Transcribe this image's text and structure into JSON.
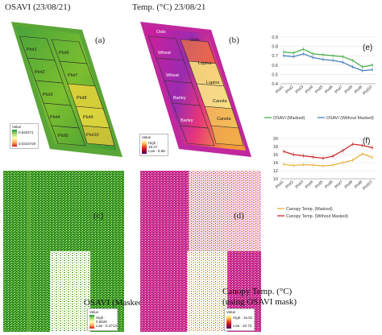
{
  "panel_a": {
    "title": "OSAVI (23/08/21)",
    "letter": "(a)",
    "plots": [
      "Plot1",
      "Plot2",
      "Plot3",
      "Plot4",
      "Plot5",
      "Plot6",
      "Plot7",
      "Plot8",
      "Plot9",
      "Plot10"
    ],
    "legend": {
      "heading": "Value",
      "high": "0.840271",
      "low": "0.0324720"
    }
  },
  "panel_b": {
    "title": "Temp. (°C) 23/08/21",
    "letter": "(b)",
    "plots": [
      "Oats",
      "Wheat",
      "Wheat",
      "Barley",
      "Barley",
      "Oats",
      "Lupins",
      "Lupins",
      "Canola",
      "Canola"
    ],
    "legend": {
      "heading": "Value",
      "high": "High : 18.27",
      "low": "Low : 8.88"
    }
  },
  "panel_c": {
    "letter": "(c)",
    "caption": "OSAVI (Masked)",
    "legend": {
      "heading": "Value",
      "high": "High : 0.8529",
      "low": "Low : 0.4713"
    }
  },
  "panel_d": {
    "letter": "(d)",
    "caption_line1": "Canopy Temp. (°C)",
    "caption_line2": "(using OSAVI mask)",
    "legend": {
      "heading": "Value",
      "high": "High : 16.81",
      "low": "Low : 10.73"
    }
  },
  "colors": {
    "osavi_series_masked": "#4caf50",
    "osavi_series_unmasked": "#4a7fc1",
    "temp_series_masked": "#e8b23a",
    "temp_series_unmasked": "#c8282b"
  },
  "chart_data": [
    {
      "type": "line",
      "panel": "(e)",
      "categories": [
        "Plot1",
        "Plot2",
        "Plot3",
        "Plot4",
        "Plot5",
        "Plot6",
        "Plot7",
        "Plot8",
        "Plot9",
        "Plot10"
      ],
      "ylim": [
        0.4,
        0.9
      ],
      "yticks": [
        "0.9",
        "0.8",
        "0.7",
        "0.6",
        "0.5",
        "0.4"
      ],
      "series": [
        {
          "name": "OSAVI (Masked)",
          "values": [
            0.74,
            0.73,
            0.77,
            0.72,
            0.71,
            0.7,
            0.69,
            0.65,
            0.58,
            0.6
          ]
        },
        {
          "name": "OSAVI (Without Masked)",
          "values": [
            0.7,
            0.69,
            0.72,
            0.68,
            0.66,
            0.65,
            0.63,
            0.58,
            0.54,
            0.55
          ]
        }
      ]
    },
    {
      "type": "line",
      "panel": "(f)",
      "categories": [
        "Plot1",
        "Plot2",
        "Plot3",
        "Plot4",
        "Plot5",
        "Plot6",
        "Plot7",
        "Plot8",
        "Plot9",
        "Plot10"
      ],
      "ylim": [
        10,
        20
      ],
      "yticks": [
        "20",
        "18",
        "16",
        "14",
        "12",
        "10"
      ],
      "series": [
        {
          "name": "Canopy Temp. (Masked)",
          "values": [
            13.6,
            13.3,
            13.5,
            13.4,
            13.2,
            13.4,
            14.0,
            14.6,
            16.2,
            15.3
          ]
        },
        {
          "name": "Canopy Temp. (Without Masked)",
          "values": [
            16.8,
            16.0,
            15.7,
            15.4,
            15.1,
            15.6,
            17.0,
            18.6,
            18.3,
            17.7
          ]
        }
      ]
    }
  ]
}
